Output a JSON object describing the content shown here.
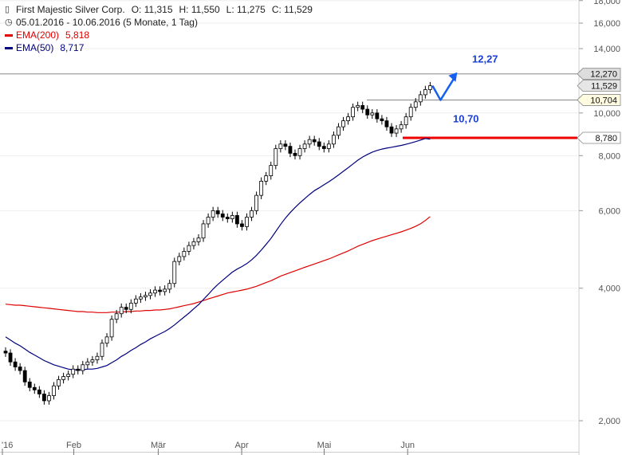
{
  "legend": {
    "title": "First Majestic Silver Corp.",
    "ohlc": {
      "o": "O: 11,315",
      "h": "H: 11,550",
      "l": "L: 11,275",
      "c": "C: 11,529"
    },
    "period": "05.01.2016 - 10.06.2016 (5 Monate, 1 Tag)",
    "ema200_name": "EMA(200)",
    "ema200_value": "5,818",
    "ema50_name": "EMA(50)",
    "ema50_value": "8,717",
    "ema200_color": "#e00000",
    "ema50_color": "#000080"
  },
  "chart_data": {
    "type": "candlestick",
    "y_scale": "log",
    "ylim": [
      1.8,
      18.0
    ],
    "y_ticks": [
      {
        "value": 2.0,
        "label": "2,000"
      },
      {
        "value": 4.0,
        "label": "4,000"
      },
      {
        "value": 6.0,
        "label": "6,000"
      },
      {
        "value": 8.0,
        "label": "8,000"
      },
      {
        "value": 10.0,
        "label": "10,000"
      },
      {
        "value": 14.0,
        "label": "14,000"
      },
      {
        "value": 16.0,
        "label": "16,000"
      },
      {
        "value": 18.0,
        "label": "18,000"
      }
    ],
    "x_ticks": [
      "'16",
      "Feb",
      "Mär",
      "Apr",
      "Mai",
      "Jun"
    ],
    "closes": [
      2.85,
      2.72,
      2.65,
      2.6,
      2.45,
      2.38,
      2.35,
      2.3,
      2.22,
      2.28,
      2.4,
      2.48,
      2.52,
      2.55,
      2.62,
      2.6,
      2.68,
      2.72,
      2.75,
      2.8,
      3.0,
      3.1,
      3.4,
      3.5,
      3.62,
      3.58,
      3.7,
      3.78,
      3.82,
      3.85,
      3.9,
      3.96,
      3.93,
      3.98,
      4.1,
      4.6,
      4.72,
      4.85,
      5.0,
      5.1,
      5.2,
      5.6,
      5.8,
      6.0,
      5.9,
      5.8,
      5.75,
      5.85,
      5.6,
      5.52,
      5.8,
      6.0,
      6.5,
      7.0,
      7.2,
      7.6,
      8.3,
      8.5,
      8.4,
      8.1,
      8.0,
      8.3,
      8.5,
      8.7,
      8.6,
      8.4,
      8.3,
      8.5,
      8.9,
      9.3,
      9.6,
      9.8,
      10.3,
      10.4,
      10.2,
      9.9,
      10.0,
      9.7,
      9.6,
      9.3,
      9.0,
      9.2,
      9.4,
      9.8,
      10.3,
      10.6,
      11.0,
      11.3,
      11.529
    ],
    "ema200": [
      3.68,
      3.67,
      3.66,
      3.66,
      3.65,
      3.64,
      3.63,
      3.62,
      3.61,
      3.6,
      3.59,
      3.58,
      3.57,
      3.56,
      3.55,
      3.54,
      3.54,
      3.53,
      3.53,
      3.52,
      3.52,
      3.52,
      3.53,
      3.53,
      3.53,
      3.54,
      3.54,
      3.55,
      3.55,
      3.56,
      3.56,
      3.57,
      3.57,
      3.58,
      3.59,
      3.61,
      3.63,
      3.65,
      3.67,
      3.69,
      3.72,
      3.75,
      3.78,
      3.81,
      3.84,
      3.87,
      3.9,
      3.92,
      3.94,
      3.96,
      3.98,
      4.01,
      4.04,
      4.08,
      4.12,
      4.16,
      4.21,
      4.26,
      4.3,
      4.34,
      4.38,
      4.42,
      4.46,
      4.5,
      4.54,
      4.58,
      4.62,
      4.66,
      4.71,
      4.76,
      4.81,
      4.86,
      4.92,
      4.98,
      5.03,
      5.08,
      5.13,
      5.17,
      5.21,
      5.25,
      5.29,
      5.33,
      5.37,
      5.42,
      5.47,
      5.53,
      5.6,
      5.7,
      5.818
    ],
    "ema50": [
      3.1,
      3.05,
      3.0,
      2.96,
      2.91,
      2.86,
      2.82,
      2.78,
      2.74,
      2.71,
      2.68,
      2.66,
      2.64,
      2.62,
      2.61,
      2.61,
      2.61,
      2.62,
      2.62,
      2.63,
      2.65,
      2.67,
      2.71,
      2.75,
      2.8,
      2.84,
      2.89,
      2.93,
      2.98,
      3.02,
      3.07,
      3.11,
      3.15,
      3.19,
      3.24,
      3.3,
      3.37,
      3.44,
      3.51,
      3.59,
      3.67,
      3.77,
      3.87,
      3.98,
      4.08,
      4.17,
      4.26,
      4.35,
      4.42,
      4.48,
      4.55,
      4.64,
      4.75,
      4.88,
      5.03,
      5.19,
      5.38,
      5.58,
      5.77,
      5.94,
      6.1,
      6.25,
      6.39,
      6.53,
      6.66,
      6.76,
      6.87,
      6.98,
      7.1,
      7.23,
      7.37,
      7.51,
      7.66,
      7.81,
      7.94,
      8.05,
      8.15,
      8.22,
      8.28,
      8.32,
      8.36,
      8.4,
      8.44,
      8.49,
      8.55,
      8.61,
      8.68,
      8.75,
      8.717
    ],
    "levels": [
      {
        "value": 12.27,
        "tag": "12,270",
        "line_color": "#888888",
        "tag_fill": "#dddddd"
      },
      {
        "value": 11.529,
        "tag": "11,529",
        "line_color": "none",
        "tag_fill": "#e6e6e6"
      },
      {
        "value": 10.704,
        "tag": "10,704",
        "line_color": "#888888",
        "tag_fill": "#fffbe0"
      },
      {
        "value": 8.78,
        "tag": "8,780",
        "line_color": "#ee0000",
        "tag_fill": "#ffffff"
      }
    ],
    "annotations": [
      {
        "text": "12,27",
        "value": 12.27,
        "color": "#1b3fd6"
      },
      {
        "text": "10,70",
        "value": 10.7,
        "color": "#1b3fd6"
      }
    ],
    "arrow_color": "#1560f0"
  }
}
